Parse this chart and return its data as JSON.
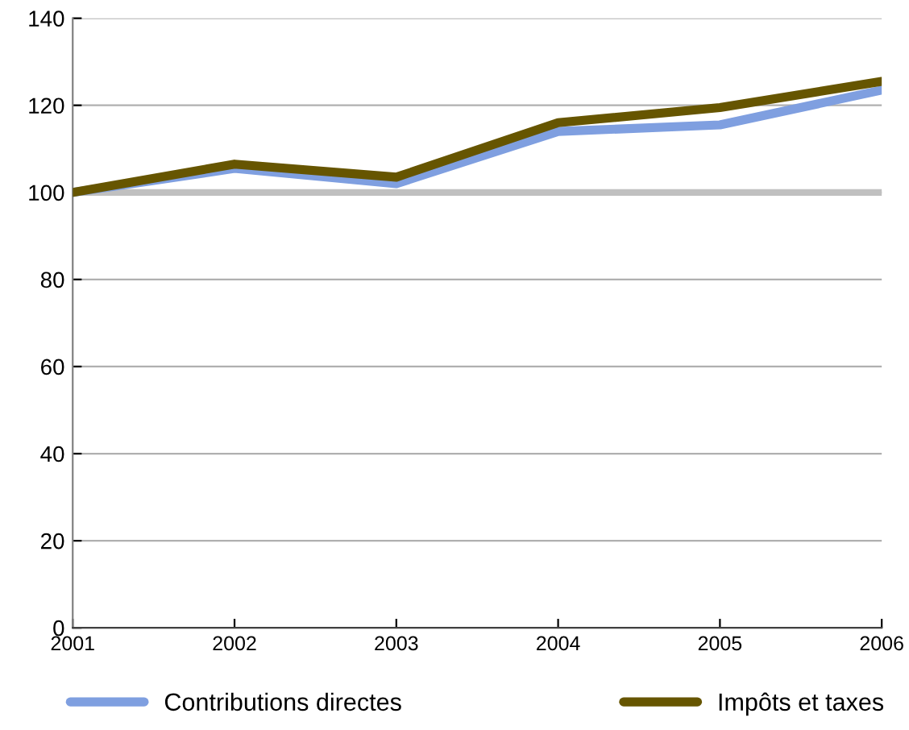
{
  "chart_data": {
    "type": "line",
    "x": [
      2001,
      2002,
      2003,
      2004,
      2005,
      2006
    ],
    "series": [
      {
        "name": "Contributions directes",
        "color": "#7f9fe0",
        "values": [
          100,
          105.5,
          102,
          114,
          115.5,
          123.5
        ]
      },
      {
        "name": "Impôts et taxes",
        "color": "#665500",
        "values": [
          100,
          106.5,
          103.5,
          116,
          119.5,
          125.5
        ]
      }
    ],
    "xlim": [
      2001,
      2006
    ],
    "xticks": [
      2001,
      2002,
      2003,
      2004,
      2005,
      2006
    ],
    "ylim": [
      0,
      140
    ],
    "yticks": [
      0,
      20,
      40,
      60,
      80,
      100,
      120,
      140
    ],
    "ref_lines": [
      {
        "axis": "y",
        "value": 100,
        "color": "#c0c0c0"
      }
    ],
    "grid": "y",
    "legend": "bottom",
    "marker": "none",
    "line_style": "solid"
  }
}
